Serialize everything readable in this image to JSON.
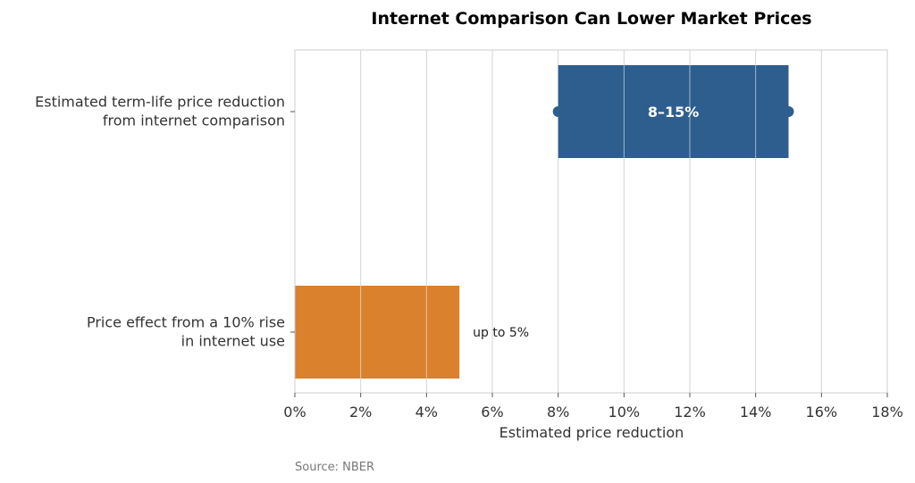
{
  "chart_data": {
    "type": "bar",
    "orientation": "horizontal",
    "title": "Internet Comparison Can Lower Market Prices",
    "xlabel": "Estimated price reduction",
    "ylabel": "",
    "xlim": [
      0,
      18
    ],
    "x_ticks": [
      0,
      2,
      4,
      6,
      8,
      10,
      12,
      14,
      16,
      18
    ],
    "x_tick_labels": [
      "0%",
      "2%",
      "4%",
      "6%",
      "8%",
      "10%",
      "12%",
      "14%",
      "16%",
      "18%"
    ],
    "grid": "vertical",
    "bars": [
      {
        "category_lines": [
          "Estimated term-life price reduction",
          "from internet comparison"
        ],
        "start": 8,
        "end": 15,
        "color": "#2e5e8e",
        "label": "8–15%",
        "label_position": "inside",
        "range_markers": true
      },
      {
        "category_lines": [
          "Price effect from a 10% rise",
          "in internet use"
        ],
        "start": 0,
        "end": 5,
        "color": "#d9812c",
        "label": "up to 5%",
        "label_position": "outside"
      }
    ],
    "source": "Source: NBER"
  }
}
